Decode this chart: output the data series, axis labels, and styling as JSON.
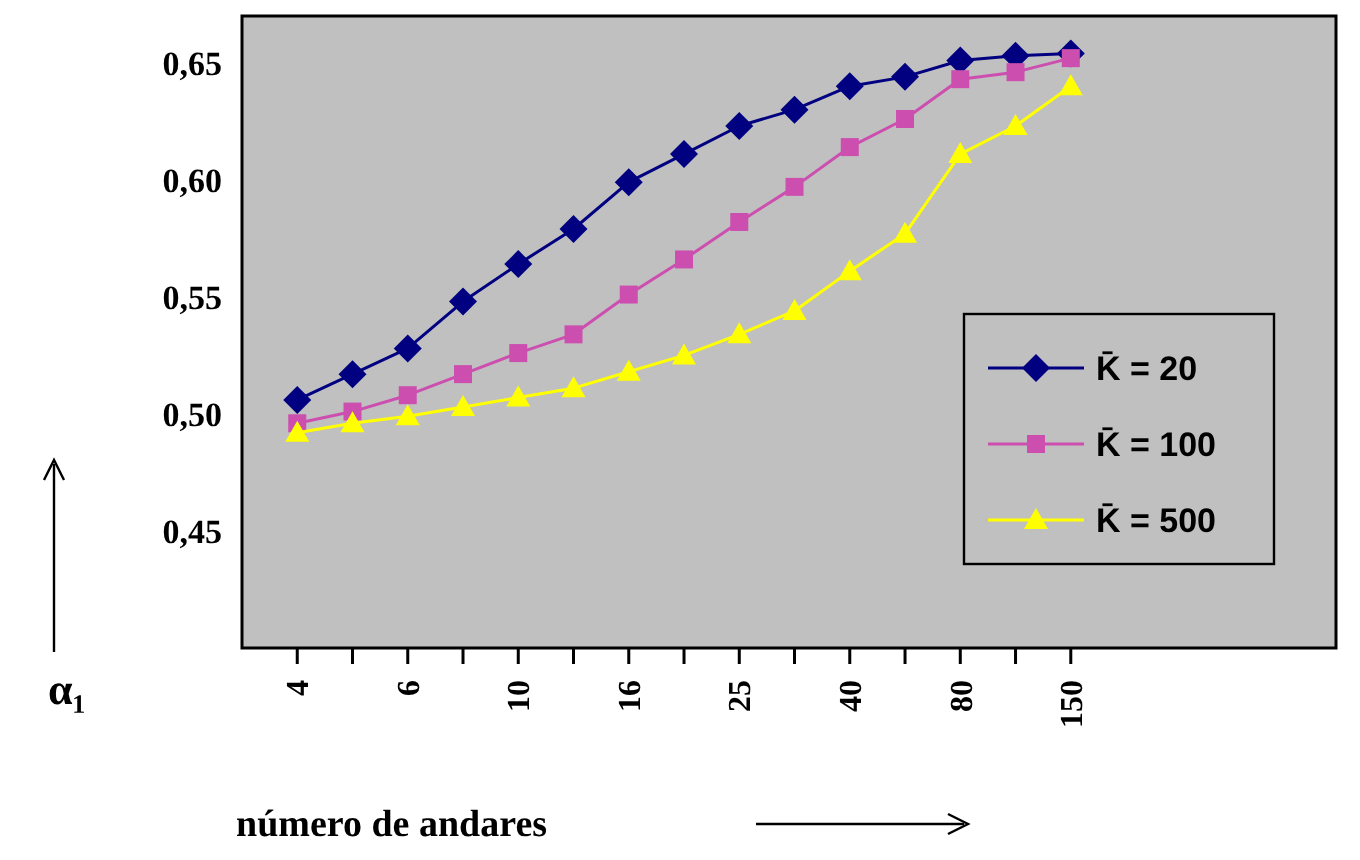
{
  "chart_data": {
    "type": "line",
    "xlabel": "número de andares",
    "ylabel": "α₁",
    "categories": [
      "4",
      null,
      "6",
      null,
      "10",
      null,
      "16",
      null,
      "25",
      null,
      "40",
      null,
      "80",
      null,
      "150"
    ],
    "series": [
      {
        "name": "K̄ = 20",
        "color": "#000080",
        "marker": "diamond",
        "values": [
          0.506,
          0.517,
          0.528,
          0.548,
          0.564,
          0.579,
          0.599,
          0.611,
          0.623,
          0.63,
          0.64,
          0.644,
          0.651,
          0.653,
          0.654
        ]
      },
      {
        "name": "K̄ = 100",
        "color": "#cc4fb0",
        "marker": "square",
        "values": [
          0.496,
          0.501,
          0.508,
          0.517,
          0.526,
          0.534,
          0.551,
          0.566,
          0.582,
          0.597,
          0.614,
          0.626,
          0.643,
          0.646,
          0.652
        ]
      },
      {
        "name": "K̄ = 500",
        "color": "#ffff00",
        "marker": "triangle",
        "values": [
          0.492,
          0.496,
          0.499,
          0.503,
          0.507,
          0.511,
          0.518,
          0.525,
          0.534,
          0.544,
          0.561,
          0.577,
          0.611,
          0.623,
          0.64
        ]
      }
    ],
    "ylim": [
      0.4,
      0.67
    ],
    "yticks": [
      {
        "value": 0.45,
        "label": "0,45"
      },
      {
        "value": 0.5,
        "label": "0,50"
      },
      {
        "value": 0.55,
        "label": "0,55"
      },
      {
        "value": 0.6,
        "label": "0,60"
      },
      {
        "value": 0.65,
        "label": "0,65"
      }
    ],
    "grid": false,
    "legend": "right",
    "line_style": "solid"
  }
}
